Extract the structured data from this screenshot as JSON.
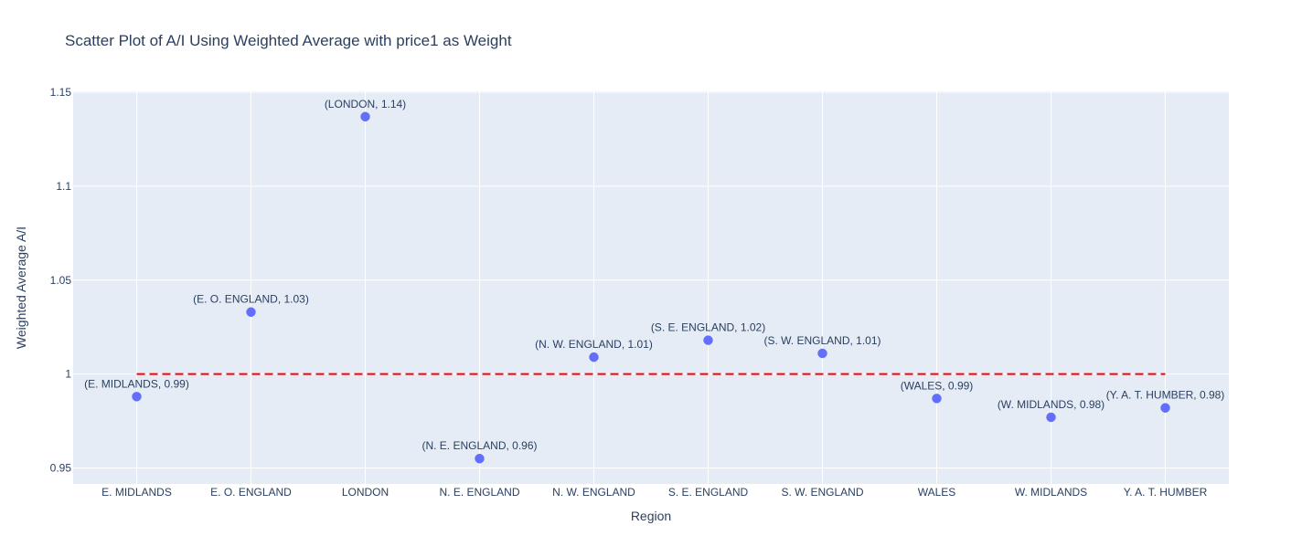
{
  "chart_data": {
    "type": "scatter",
    "title": "Scatter Plot of A/I Using Weighted Average with price1 as Weight",
    "xlabel": "Region",
    "ylabel": "Weighted Average A/I",
    "categories": [
      "E. MIDLANDS",
      "E. O. ENGLAND",
      "LONDON",
      "N. E. ENGLAND",
      "N. W. ENGLAND",
      "S. E. ENGLAND",
      "S. W. ENGLAND",
      "WALES",
      "W. MIDLANDS",
      "Y. A. T. HUMBER"
    ],
    "values": [
      0.988,
      1.033,
      1.137,
      0.955,
      1.009,
      1.018,
      1.011,
      0.987,
      0.977,
      0.982
    ],
    "point_labels": [
      "(E. MIDLANDS, 0.99)",
      "(E. O. ENGLAND, 1.03)",
      "(LONDON, 1.14)",
      "(N. E. ENGLAND, 0.96)",
      "(N. W. ENGLAND, 1.01)",
      "(S. E. ENGLAND, 1.02)",
      "(S. W. ENGLAND, 1.01)",
      "(WALES, 0.99)",
      "(W. MIDLANDS, 0.98)",
      "(Y. A. T. HUMBER, 0.98)"
    ],
    "yticks": [
      0.95,
      1,
      1.05,
      1.1,
      1.15
    ],
    "ytick_labels": [
      "0.95",
      "1",
      "1.05",
      "1.1",
      "1.15"
    ],
    "ylim": [
      0.9415,
      1.1505
    ],
    "reference_line": {
      "y": 1,
      "style": "dashed",
      "color": "#ff0000"
    },
    "marker_color": "#636efa",
    "plot_background": "#e5ecf6",
    "grid": true,
    "legend": false
  }
}
